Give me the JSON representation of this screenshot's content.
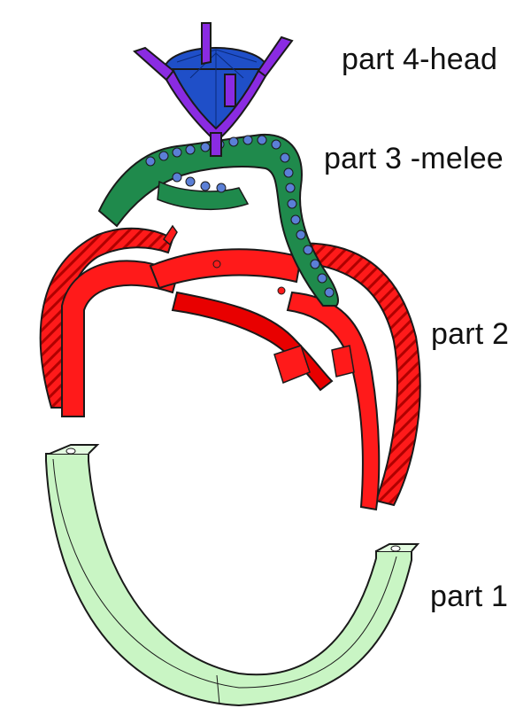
{
  "labels": {
    "part4": "part 4-head",
    "part3": "part 3 -melee",
    "part2": "part 2",
    "part1": "part 1"
  },
  "colors": {
    "head_prongs": "#8a2be2",
    "head_stone": "#1f4fc8",
    "melee_band": "#1f8a4c",
    "melee_stones": "#5b7fd6",
    "twist_shank": "#ff1a1a",
    "lower_shank": "#c9f5c4",
    "outline": "#1a1a1a"
  }
}
